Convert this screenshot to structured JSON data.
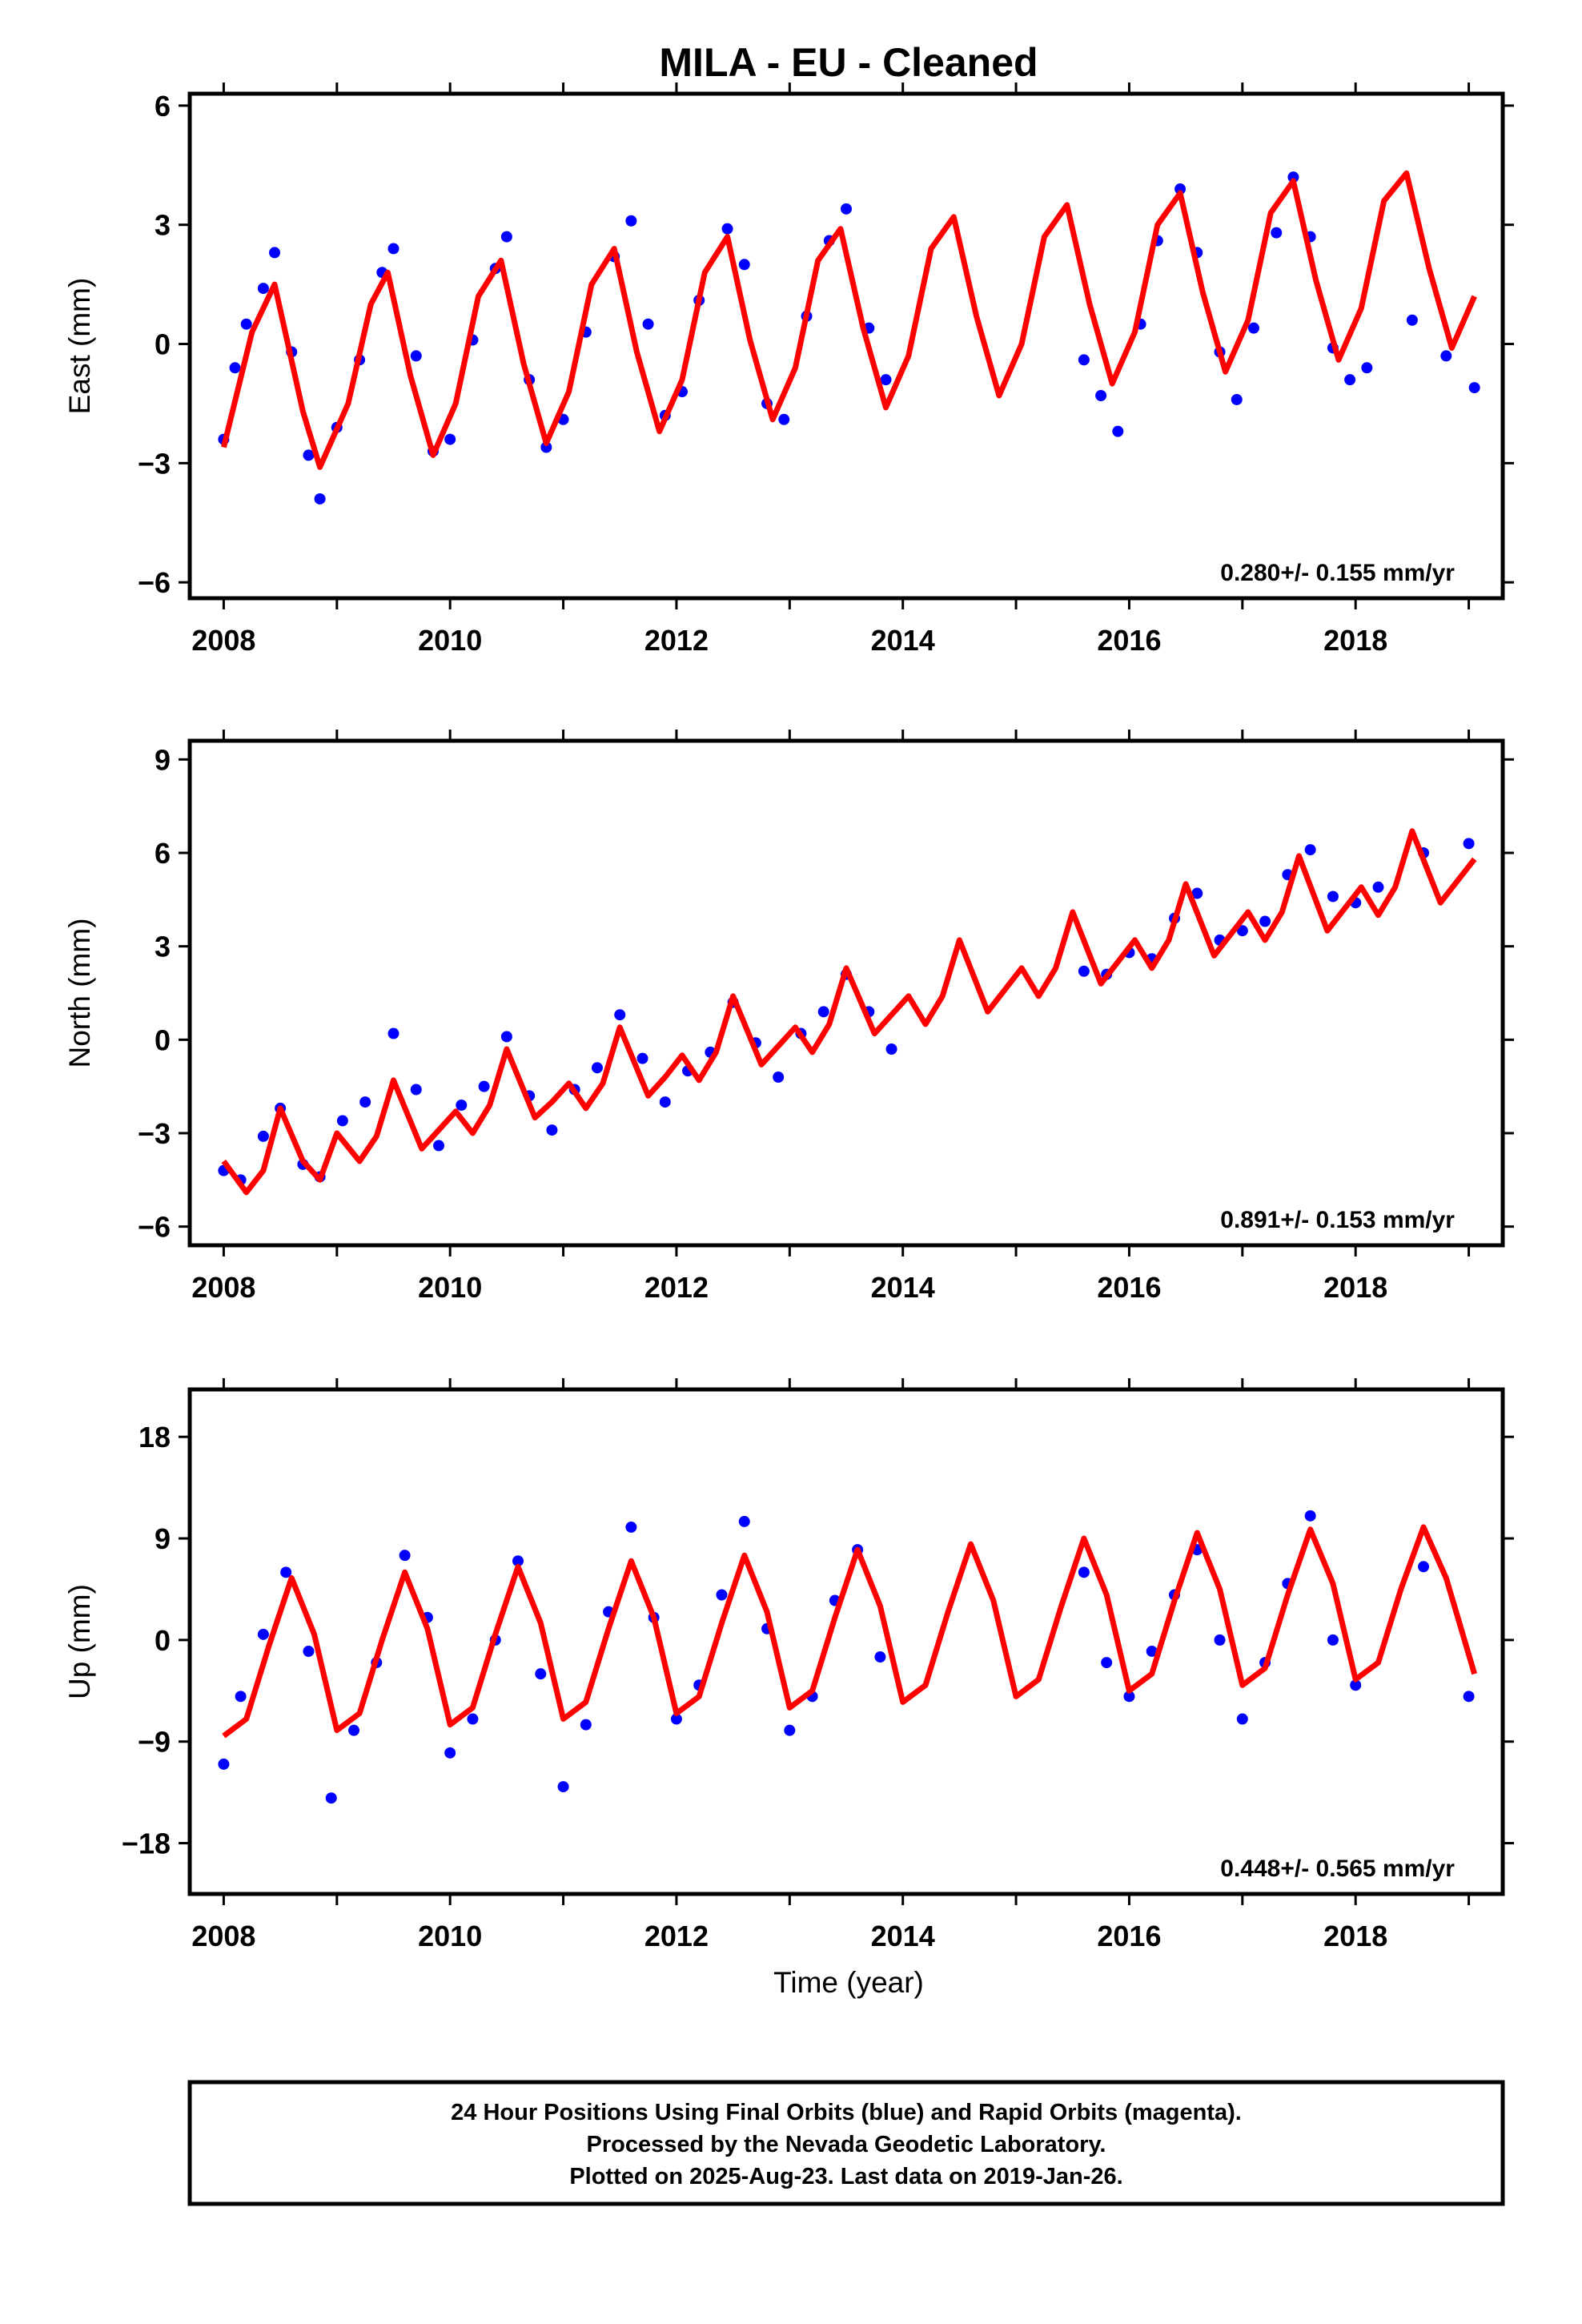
{
  "figure": {
    "title": "MILA  - EU - Cleaned",
    "footer_lines": [
      "24 Hour Positions Using Final Orbits (blue) and Rapid Orbits (magenta).",
      "Processed by the Nevada Geodetic Laboratory.",
      "Plotted on 2025-Aug-23. Last data on 2019-Jan-26."
    ]
  },
  "colors": {
    "observations": "#0000ff",
    "model_fit": "#ff0000",
    "frame": "#000000"
  },
  "chart_data": [
    {
      "type": "scatter",
      "ylabel": "East (mm)",
      "xlabel": "",
      "xlim": [
        2007.7,
        2019.3
      ],
      "ylim": [
        -6.4,
        6.3
      ],
      "xticks": [
        2008,
        2010,
        2012,
        2014,
        2016,
        2018
      ],
      "yticks": [
        6,
        3,
        0,
        -3,
        -6
      ],
      "ytick_labels": [
        "6",
        "3",
        "0",
        "−3",
        "−6"
      ],
      "rate_text": "0.280+/- 0.155 mm/yr",
      "grid": false,
      "series": [
        {
          "kind": "points",
          "color": "#0000ff",
          "x": [
            2008.0,
            2008.1,
            2008.2,
            2008.35,
            2008.45,
            2008.6,
            2008.75,
            2008.85,
            2009.0,
            2009.2,
            2009.4,
            2009.5,
            2009.7,
            2009.85,
            2010.0,
            2010.2,
            2010.4,
            2010.5,
            2010.7,
            2010.85,
            2011.0,
            2011.2,
            2011.45,
            2011.6,
            2011.75,
            2011.9,
            2012.05,
            2012.2,
            2012.45,
            2012.6,
            2012.8,
            2012.95,
            2013.15,
            2013.35,
            2013.5,
            2013.7,
            2013.85,
            2015.6,
            2015.75,
            2015.9,
            2016.1,
            2016.25,
            2016.45,
            2016.6,
            2016.8,
            2016.95,
            2017.1,
            2017.3,
            2017.45,
            2017.6,
            2017.8,
            2017.95,
            2018.1,
            2018.5,
            2018.8,
            2019.05
          ],
          "y": [
            -2.4,
            -0.6,
            0.5,
            1.4,
            2.3,
            -0.2,
            -2.8,
            -3.9,
            -2.1,
            -0.4,
            1.8,
            2.4,
            -0.3,
            -2.7,
            -2.4,
            0.1,
            1.9,
            2.7,
            -0.9,
            -2.6,
            -1.9,
            0.3,
            2.2,
            3.1,
            0.5,
            -1.8,
            -1.2,
            1.1,
            2.9,
            2.0,
            -1.5,
            -1.9,
            0.7,
            2.6,
            3.4,
            0.4,
            -0.9,
            -0.4,
            -1.3,
            -2.2,
            0.5,
            2.6,
            3.9,
            2.3,
            -0.2,
            -1.4,
            0.4,
            2.8,
            4.2,
            2.7,
            -0.1,
            -0.9,
            -0.6,
            0.6,
            -0.3,
            -1.1
          ]
        },
        {
          "kind": "line",
          "color": "#ff0000",
          "x": [
            2008.0,
            2008.25,
            2008.45,
            2008.7,
            2008.85,
            2009.1,
            2009.3,
            2009.45,
            2009.65,
            2009.85,
            2010.05,
            2010.25,
            2010.45,
            2010.65,
            2010.85,
            2011.05,
            2011.25,
            2011.45,
            2011.65,
            2011.85,
            2012.05,
            2012.25,
            2012.45,
            2012.65,
            2012.85,
            2013.05,
            2013.25,
            2013.45,
            2013.65,
            2013.85,
            2014.05,
            2014.25,
            2014.45,
            2014.65,
            2014.85,
            2015.05,
            2015.25,
            2015.45,
            2015.65,
            2015.85,
            2016.05,
            2016.25,
            2016.45,
            2016.65,
            2016.85,
            2017.05,
            2017.25,
            2017.45,
            2017.65,
            2017.85,
            2018.05,
            2018.25,
            2018.45,
            2018.65,
            2018.85,
            2019.05
          ],
          "y": [
            -2.6,
            0.3,
            1.5,
            -1.7,
            -3.1,
            -1.5,
            1.0,
            1.8,
            -0.8,
            -2.8,
            -1.5,
            1.2,
            2.1,
            -0.5,
            -2.5,
            -1.2,
            1.5,
            2.4,
            -0.2,
            -2.2,
            -0.9,
            1.8,
            2.7,
            0.1,
            -1.9,
            -0.6,
            2.1,
            2.9,
            0.4,
            -1.6,
            -0.3,
            2.4,
            3.2,
            0.7,
            -1.3,
            0.0,
            2.7,
            3.5,
            1.0,
            -1.0,
            0.3,
            3.0,
            3.8,
            1.3,
            -0.7,
            0.6,
            3.3,
            4.1,
            1.6,
            -0.4,
            0.9,
            3.6,
            4.3,
            1.9,
            -0.1,
            1.2
          ]
        }
      ]
    },
    {
      "type": "scatter",
      "ylabel": "North (mm)",
      "xlabel": "",
      "xlim": [
        2007.7,
        2019.3
      ],
      "ylim": [
        -6.6,
        9.6
      ],
      "xticks": [
        2008,
        2010,
        2012,
        2014,
        2016,
        2018
      ],
      "yticks": [
        9,
        6,
        3,
        0,
        -3,
        -6
      ],
      "ytick_labels": [
        "9",
        "6",
        "3",
        "0",
        "−3",
        "−6"
      ],
      "rate_text": "0.891+/- 0.153 mm/yr",
      "grid": false,
      "series": [
        {
          "kind": "points",
          "color": "#0000ff",
          "x": [
            2008.0,
            2008.15,
            2008.35,
            2008.5,
            2008.7,
            2008.85,
            2009.05,
            2009.25,
            2009.5,
            2009.7,
            2009.9,
            2010.1,
            2010.3,
            2010.5,
            2010.7,
            2010.9,
            2011.1,
            2011.3,
            2011.5,
            2011.7,
            2011.9,
            2012.1,
            2012.3,
            2012.5,
            2012.7,
            2012.9,
            2013.1,
            2013.3,
            2013.5,
            2013.7,
            2013.9,
            2015.6,
            2015.8,
            2016.0,
            2016.2,
            2016.4,
            2016.6,
            2016.8,
            2017.0,
            2017.2,
            2017.4,
            2017.6,
            2017.8,
            2018.0,
            2018.2,
            2018.6,
            2019.0
          ],
          "y": [
            -4.2,
            -4.5,
            -3.1,
            -2.2,
            -4.0,
            -4.4,
            -2.6,
            -2.0,
            0.2,
            -1.6,
            -3.4,
            -2.1,
            -1.5,
            0.1,
            -1.8,
            -2.9,
            -1.6,
            -0.9,
            0.8,
            -0.6,
            -2.0,
            -1.0,
            -0.4,
            1.2,
            -0.1,
            -1.2,
            0.2,
            0.9,
            2.1,
            0.9,
            -0.3,
            2.2,
            2.1,
            2.8,
            2.6,
            3.9,
            4.7,
            3.2,
            3.5,
            3.8,
            5.3,
            6.1,
            4.6,
            4.4,
            4.9,
            6.0,
            6.3
          ]
        },
        {
          "kind": "line",
          "color": "#ff0000",
          "x": [
            2008.0,
            2008.2,
            2008.35,
            2008.5,
            2008.7,
            2008.85,
            2009.0,
            2009.2,
            2009.35,
            2009.5,
            2009.75,
            2009.9,
            2010.05,
            2010.2,
            2010.35,
            2010.5,
            2010.75,
            2010.9,
            2011.05,
            2011.2,
            2011.35,
            2011.5,
            2011.75,
            2011.9,
            2012.05,
            2012.2,
            2012.35,
            2012.5,
            2012.75,
            2012.9,
            2013.05,
            2013.2,
            2013.35,
            2013.5,
            2013.75,
            2013.9,
            2014.05,
            2014.2,
            2014.35,
            2014.5,
            2014.75,
            2014.9,
            2015.05,
            2015.2,
            2015.35,
            2015.5,
            2015.75,
            2015.9,
            2016.05,
            2016.2,
            2016.35,
            2016.5,
            2016.75,
            2016.9,
            2017.05,
            2017.2,
            2017.35,
            2017.5,
            2017.75,
            2017.9,
            2018.05,
            2018.2,
            2018.35,
            2018.5,
            2018.75,
            2018.9,
            2019.05
          ],
          "y": [
            -3.9,
            -4.9,
            -4.2,
            -2.2,
            -3.9,
            -4.5,
            -3.0,
            -3.9,
            -3.1,
            -1.3,
            -3.5,
            -2.9,
            -2.3,
            -3.0,
            -2.1,
            -0.3,
            -2.5,
            -2.0,
            -1.4,
            -2.2,
            -1.4,
            0.4,
            -1.8,
            -1.2,
            -0.5,
            -1.3,
            -0.4,
            1.4,
            -0.8,
            -0.2,
            0.4,
            -0.4,
            0.5,
            2.3,
            0.2,
            0.8,
            1.4,
            0.5,
            1.4,
            3.2,
            0.9,
            1.6,
            2.3,
            1.4,
            2.3,
            4.1,
            1.8,
            2.5,
            3.2,
            2.3,
            3.2,
            5.0,
            2.7,
            3.4,
            4.1,
            3.2,
            4.1,
            5.9,
            3.5,
            4.2,
            4.9,
            4.0,
            4.9,
            6.7,
            4.4,
            5.1,
            5.8
          ]
        }
      ]
    },
    {
      "type": "scatter",
      "ylabel": "Up (mm)",
      "xlabel": "Time (year)",
      "xlim": [
        2007.7,
        2019.3
      ],
      "ylim": [
        -22.5,
        22.2
      ],
      "xticks": [
        2008,
        2010,
        2012,
        2014,
        2016,
        2018
      ],
      "yticks": [
        18,
        9,
        0,
        -9,
        -18
      ],
      "ytick_labels": [
        "18",
        "9",
        "0",
        "−9",
        "−18"
      ],
      "rate_text": "0.448+/- 0.565 mm/yr",
      "grid": false,
      "series": [
        {
          "kind": "points",
          "color": "#0000ff",
          "x": [
            2008.0,
            2008.15,
            2008.35,
            2008.55,
            2008.75,
            2008.95,
            2009.15,
            2009.35,
            2009.6,
            2009.8,
            2010.0,
            2010.2,
            2010.4,
            2010.6,
            2010.8,
            2011.0,
            2011.2,
            2011.4,
            2011.6,
            2011.8,
            2012.0,
            2012.2,
            2012.4,
            2012.6,
            2012.8,
            2013.0,
            2013.2,
            2013.4,
            2013.6,
            2013.8,
            2015.6,
            2015.8,
            2016.0,
            2016.2,
            2016.4,
            2016.6,
            2016.8,
            2017.0,
            2017.2,
            2017.4,
            2017.6,
            2017.8,
            2018.0,
            2018.6,
            2019.0
          ],
          "y": [
            -11.0,
            -5.0,
            0.5,
            6.0,
            -1.0,
            -14.0,
            -8.0,
            -2.0,
            7.5,
            2.0,
            -10.0,
            -7.0,
            0.0,
            7.0,
            -3.0,
            -13.0,
            -7.5,
            2.5,
            10.0,
            2.0,
            -7.0,
            -4.0,
            4.0,
            10.5,
            1.0,
            -8.0,
            -5.0,
            3.5,
            8.0,
            -1.5,
            6.0,
            -2.0,
            -5.0,
            -1.0,
            4.0,
            8.0,
            0.0,
            -7.0,
            -2.0,
            5.0,
            11.0,
            0.0,
            -4.0,
            6.5,
            -5.0
          ]
        },
        {
          "kind": "line",
          "color": "#ff0000",
          "x": [
            2008.0,
            2008.2,
            2008.4,
            2008.6,
            2008.8,
            2009.0,
            2009.2,
            2009.4,
            2009.6,
            2009.8,
            2010.0,
            2010.2,
            2010.4,
            2010.6,
            2010.8,
            2011.0,
            2011.2,
            2011.4,
            2011.6,
            2011.8,
            2012.0,
            2012.2,
            2012.4,
            2012.6,
            2012.8,
            2013.0,
            2013.2,
            2013.4,
            2013.6,
            2013.8,
            2014.0,
            2014.2,
            2014.4,
            2014.6,
            2014.8,
            2015.0,
            2015.2,
            2015.4,
            2015.6,
            2015.8,
            2016.0,
            2016.2,
            2016.4,
            2016.6,
            2016.8,
            2017.0,
            2017.2,
            2017.4,
            2017.6,
            2017.8,
            2018.0,
            2018.2,
            2018.4,
            2018.6,
            2018.8,
            2019.05
          ],
          "y": [
            -8.5,
            -7.0,
            -0.5,
            5.5,
            0.5,
            -8.0,
            -6.5,
            0.0,
            6.0,
            1.0,
            -7.5,
            -6.0,
            0.5,
            6.5,
            1.5,
            -7.0,
            -5.5,
            1.0,
            7.0,
            2.0,
            -6.5,
            -5.0,
            1.5,
            7.5,
            2.5,
            -6.0,
            -4.5,
            2.0,
            8.0,
            3.0,
            -5.5,
            -4.0,
            2.5,
            8.5,
            3.5,
            -5.0,
            -3.5,
            3.0,
            9.0,
            4.0,
            -4.5,
            -3.0,
            3.5,
            9.5,
            4.5,
            -4.0,
            -2.5,
            4.0,
            9.8,
            5.0,
            -3.5,
            -2.0,
            4.5,
            10.0,
            5.5,
            -3.0
          ]
        }
      ]
    }
  ]
}
